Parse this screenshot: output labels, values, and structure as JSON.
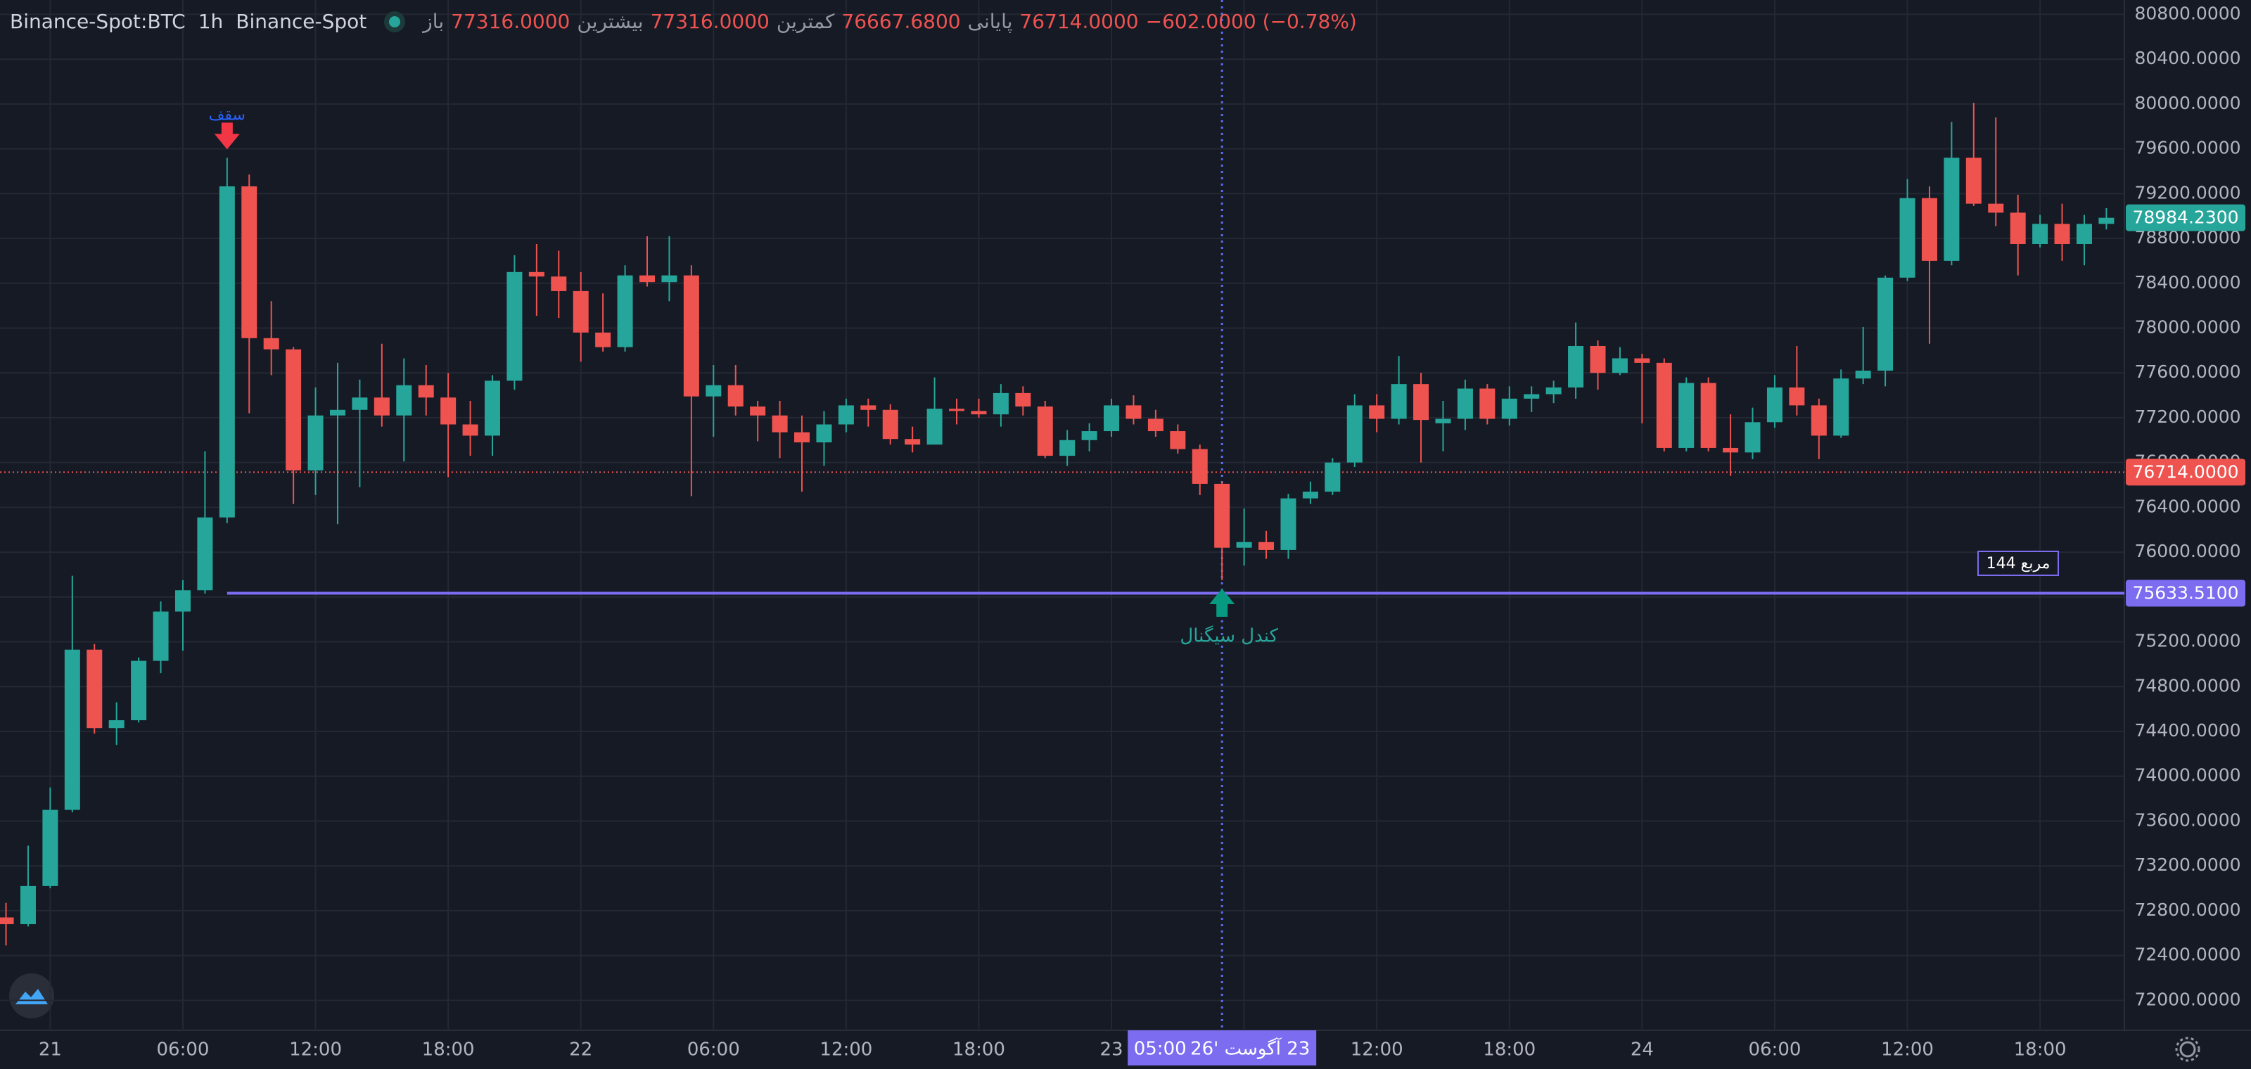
{
  "chart_data": {
    "type": "candlestick",
    "header": {
      "symbol": "Binance-Spot:BTC",
      "interval": "1h",
      "exchange": "Binance-Spot",
      "ohlc": [
        {
          "label": "باز",
          "value": "77316.0000"
        },
        {
          "label": "بیشترین",
          "value": "77316.0000"
        },
        {
          "label": "کمترین",
          "value": "76667.6800"
        },
        {
          "label": "پایانی",
          "value": "76714.0000"
        }
      ],
      "change": "−602.0000 (−0.78%)"
    },
    "up_color": "#26a69a",
    "down_color": "#ef5350",
    "categories": [
      null,
      null,
      "21",
      null,
      null,
      null,
      null,
      null,
      "06:00",
      null,
      null,
      null,
      null,
      null,
      "12:00",
      null,
      null,
      null,
      null,
      null,
      "18:00",
      null,
      null,
      null,
      null,
      null,
      "22",
      null,
      null,
      null,
      null,
      null,
      "06:00",
      null,
      null,
      null,
      null,
      null,
      "12:00",
      null,
      null,
      null,
      null,
      null,
      "18:00",
      null,
      null,
      null,
      null,
      null,
      "23",
      null,
      null,
      null,
      null,
      null,
      null,
      null,
      null,
      null,
      null,
      null,
      "12:00",
      null,
      null,
      null,
      null,
      null,
      "18:00",
      null,
      null,
      null,
      null,
      null,
      "24",
      null,
      null,
      null,
      null,
      null,
      "06:00",
      null,
      null,
      null,
      null,
      null,
      "12:00",
      null,
      null,
      null,
      null,
      null,
      "18:00",
      null,
      null,
      null
    ],
    "open": [
      72740,
      72680,
      73020,
      73700,
      75130,
      74430,
      74500,
      75030,
      75470,
      75660,
      76310,
      79265,
      77910,
      77810,
      76730,
      77220,
      77270,
      77380,
      77220,
      77490,
      77380,
      77140,
      77040,
      77530,
      78500,
      78460,
      78330,
      77960,
      77830,
      78470,
      78410,
      78470,
      77390,
      77490,
      77300,
      77220,
      77070,
      76980,
      77140,
      77310,
      77270,
      77010,
      76960,
      77280,
      77260,
      77230,
      77420,
      77300,
      76860,
      77000,
      77080,
      77310,
      77190,
      77080,
      76920,
      76610,
      76040,
      76090,
      76020,
      76480,
      76540,
      76800,
      77310,
      77190,
      77500,
      77150,
      77190,
      77460,
      77190,
      77370,
      77410,
      77470,
      77840,
      77600,
      77730,
      77690,
      76930,
      77510,
      76930,
      76890,
      77160,
      77470,
      77310,
      77040,
      77550,
      77620,
      78450,
      79160,
      78600,
      79520,
      79110,
      79030,
      78750,
      78930,
      78750,
      78930
    ],
    "high": [
      72870,
      73380,
      73900,
      75790,
      75180,
      74660,
      75060,
      75560,
      75750,
      76900,
      79520,
      79370,
      78240,
      77830,
      77470,
      77690,
      77540,
      77860,
      77730,
      77670,
      77600,
      77350,
      77580,
      78650,
      78750,
      78690,
      78500,
      78310,
      78560,
      78820,
      78820,
      78560,
      77670,
      77670,
      77350,
      77350,
      77220,
      77260,
      77370,
      77370,
      77320,
      77120,
      77560,
      77370,
      77370,
      77500,
      77480,
      77350,
      77090,
      77150,
      77370,
      77400,
      77270,
      77140,
      76960,
      76630,
      76390,
      76190,
      76520,
      76630,
      76840,
      77410,
      77410,
      77750,
      77600,
      77350,
      77540,
      77500,
      77480,
      77480,
      77530,
      78050,
      77890,
      77830,
      77770,
      77730,
      77560,
      77560,
      77230,
      77290,
      77580,
      77840,
      77370,
      77630,
      78010,
      78470,
      79330,
      79265,
      79840,
      80010,
      79880,
      79190,
      79010,
      79110,
      79010,
      79070
    ],
    "low": [
      72490,
      72660,
      73000,
      73680,
      74380,
      74280,
      74480,
      74920,
      75120,
      75630,
      76260,
      77240,
      77580,
      76430,
      76510,
      76250,
      76580,
      77120,
      76810,
      77220,
      76670,
      76860,
      76860,
      77450,
      78110,
      78090,
      77700,
      77790,
      77790,
      78370,
      78240,
      76500,
      77030,
      77220,
      76990,
      76840,
      76540,
      76770,
      77070,
      77120,
      76960,
      76890,
      76960,
      77140,
      77200,
      77120,
      77220,
      76840,
      76770,
      76900,
      77030,
      77140,
      77030,
      76880,
      76510,
      75750,
      75880,
      75940,
      75940,
      76430,
      76510,
      76760,
      77070,
      77140,
      76800,
      76900,
      77090,
      77140,
      77130,
      77250,
      77330,
      77370,
      77450,
      77580,
      77150,
      76900,
      76900,
      76900,
      76680,
      76830,
      77110,
      77220,
      76830,
      77020,
      77500,
      77480,
      78420,
      77860,
      78560,
      79090,
      78910,
      78470,
      78720,
      78600,
      78560,
      78880
    ],
    "close": [
      72680,
      73020,
      73700,
      75130,
      74430,
      74500,
      75030,
      75470,
      75660,
      76310,
      79265,
      77910,
      77810,
      76730,
      77220,
      77270,
      77380,
      77220,
      77490,
      77380,
      77140,
      77040,
      77530,
      78500,
      78460,
      78330,
      77960,
      77830,
      78470,
      78410,
      78470,
      77390,
      77490,
      77300,
      77220,
      77070,
      76980,
      77140,
      77310,
      77270,
      77010,
      76960,
      77280,
      77260,
      77230,
      77420,
      77300,
      76860,
      77000,
      77080,
      77310,
      77190,
      77080,
      76920,
      76610,
      76040,
      76090,
      76020,
      76480,
      76540,
      76800,
      77310,
      77190,
      77500,
      77180,
      77190,
      77460,
      77190,
      77370,
      77410,
      77470,
      77840,
      77600,
      77730,
      77690,
      76930,
      77510,
      76930,
      76890,
      77160,
      77470,
      77310,
      77040,
      77550,
      77620,
      78450,
      79160,
      78600,
      79520,
      79110,
      79030,
      78750,
      78930,
      78750,
      78930,
      78984.23
    ],
    "ylim": [
      71745,
      80928
    ],
    "yticks": [
      {
        "value": 72000,
        "label": "72000.0000"
      },
      {
        "value": 72400,
        "label": "72400.0000"
      },
      {
        "value": 72800,
        "label": "72800.0000"
      },
      {
        "value": 73200,
        "label": "73200.0000"
      },
      {
        "value": 73600,
        "label": "73600.0000"
      },
      {
        "value": 74000,
        "label": "74000.0000"
      },
      {
        "value": 74400,
        "label": "74400.0000"
      },
      {
        "value": 74800,
        "label": "74800.0000"
      },
      {
        "value": 75200,
        "label": "75200.0000"
      },
      {
        "value": 75600,
        "label": "75600.0000"
      },
      {
        "value": 76000,
        "label": "76000.0000"
      },
      {
        "value": 76400,
        "label": "76400.0000"
      },
      {
        "value": 76800,
        "label": "76800.0000"
      },
      {
        "value": 77200,
        "label": "77200.0000"
      },
      {
        "value": 77600,
        "label": "77600.0000"
      },
      {
        "value": 78000,
        "label": "78000.0000"
      },
      {
        "value": 78400,
        "label": "78400.0000"
      },
      {
        "value": 78800,
        "label": "78800.0000"
      },
      {
        "value": 79200,
        "label": "79200.0000"
      },
      {
        "value": 79600,
        "label": "79600.0000"
      },
      {
        "value": 80000,
        "label": "80000.0000"
      },
      {
        "value": 80400,
        "label": "80400.0000"
      },
      {
        "value": 80800,
        "label": "80800.0000"
      }
    ],
    "grid": true,
    "price_lines": [
      {
        "value": 78984.23,
        "label": "78984.2300",
        "color": "#26a69a",
        "line": false
      },
      {
        "value": 76714,
        "label": "76714.0000",
        "color": "#ef5350",
        "line": "dotted"
      },
      {
        "value": 75633.51,
        "label": "75633.5100",
        "color": "#7b6cf0",
        "line": "solid"
      }
    ],
    "crosshair": {
      "date": "23 آگوست '26",
      "time": "05:00"
    },
    "annotations": {
      "top": "سقف",
      "signal": "کندل سیگنال",
      "box": "مربع 144"
    }
  }
}
